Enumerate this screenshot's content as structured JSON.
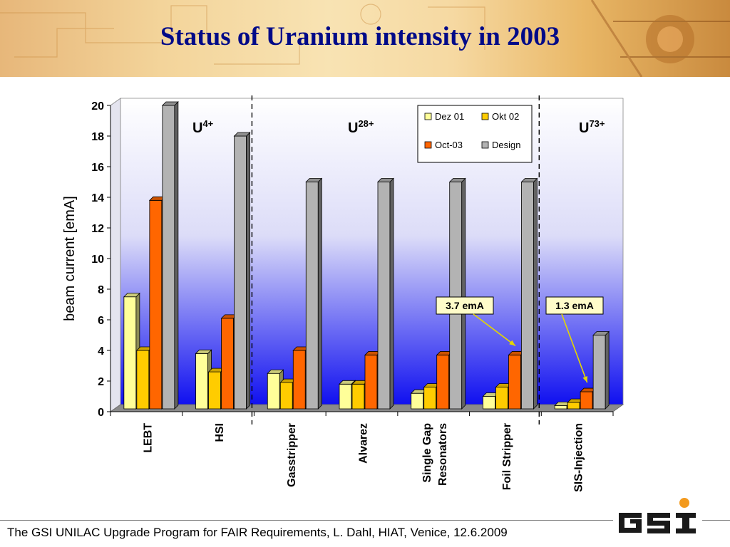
{
  "slide": {
    "title": "Status of Uranium intensity in 2003",
    "footer": "The GSI UNILAC Upgrade Program for FAIR Requirements, L. Dahl, HIAT, Venice, 12.6.2009",
    "logo_text": "GSI"
  },
  "chart_data": {
    "type": "bar",
    "title": "",
    "xlabel": "",
    "ylabel": "beam current [emA]",
    "ylim": [
      0,
      20
    ],
    "yticks": [
      0,
      2,
      4,
      6,
      8,
      10,
      12,
      14,
      16,
      18,
      20
    ],
    "categories": [
      "LEBT",
      "HSI",
      "Gasstripper",
      "Alvarez",
      "Single Gap Resonators",
      "Foil Stripper",
      "SIS-Injection"
    ],
    "category_lines": [
      [
        "LEBT"
      ],
      [
        "HSI"
      ],
      [
        "Gasstripper"
      ],
      [
        "Alvarez"
      ],
      [
        "Single Gap",
        "Resonators"
      ],
      [
        "Foil Stripper"
      ],
      [
        "SIS-Injection"
      ]
    ],
    "series": [
      {
        "name": "Dez 01",
        "color": "#ffff99",
        "values": [
          7.5,
          3.8,
          2.5,
          1.8,
          1.2,
          1.0,
          0.4
        ]
      },
      {
        "name": "Okt 02",
        "color": "#ffcc00",
        "values": [
          4.0,
          2.6,
          1.9,
          1.8,
          1.6,
          1.6,
          0.6
        ]
      },
      {
        "name": "Oct-03",
        "color": "#ff6600",
        "values": [
          13.8,
          6.1,
          4.0,
          3.7,
          3.7,
          3.7,
          1.3
        ]
      },
      {
        "name": "Design",
        "color": "#b3b3b3",
        "values": [
          20,
          18,
          15,
          15,
          15,
          15,
          5
        ]
      }
    ],
    "legend_position": "top-right",
    "sections": [
      {
        "label": "U",
        "sup": "4+"
      },
      {
        "label": "U",
        "sup": "28+"
      },
      {
        "label": "U",
        "sup": "73+"
      }
    ],
    "annotations": [
      {
        "text": "3.7 emA",
        "category": "Foil Stripper",
        "series": "Oct-03"
      },
      {
        "text": "1.3 emA",
        "category": "SIS-Injection",
        "series": "Oct-03"
      }
    ],
    "grid": false,
    "background": "white-to-blue gradient"
  }
}
